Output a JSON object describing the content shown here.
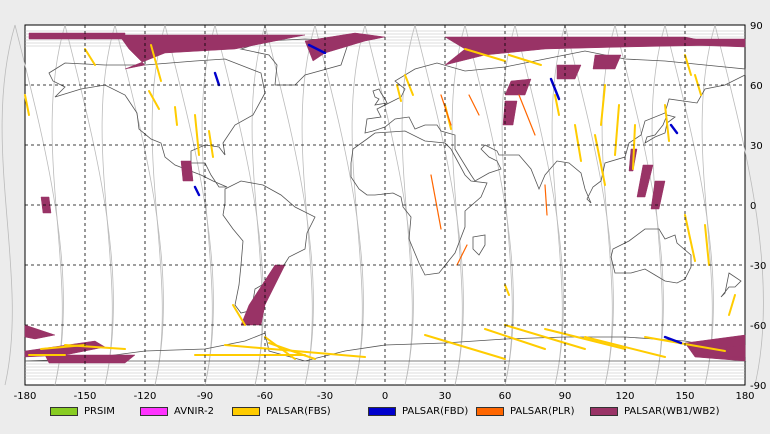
{
  "map": {
    "x_ticks": [
      "-180",
      "-150",
      "-120",
      "-90",
      "-60",
      "-30",
      "0",
      "30",
      "60",
      "90",
      "120",
      "150",
      "180"
    ],
    "y_ticks": [
      "90",
      "60",
      "30",
      "0",
      "-30",
      "-60",
      "-90"
    ],
    "lon_range": [
      -180,
      180
    ],
    "lat_range": [
      -90,
      90
    ],
    "grid_step": 30,
    "grid": "dashed"
  },
  "legend": [
    {
      "label": "PRSIM",
      "color": "#88cc22"
    },
    {
      "label": "AVNIR-2",
      "color": "#ff33ff"
    },
    {
      "label": "PALSAR(FBS)",
      "color": "#ffcc00"
    },
    {
      "label": "PALSAR(FBD)",
      "color": "#0000cc"
    },
    {
      "label": "PALSAR(PLR)",
      "color": "#ff6600"
    },
    {
      "label": "PALSAR(WB1/WB2)",
      "color": "#993366"
    }
  ],
  "colors": {
    "background": "#ececec",
    "plot": "#ffffff",
    "coastline": "#555555",
    "orbit": "#bbbbbb",
    "fbs": "#ffcc00",
    "fbd": "#0000cc",
    "plr": "#ff6600",
    "wb": "#993366"
  }
}
